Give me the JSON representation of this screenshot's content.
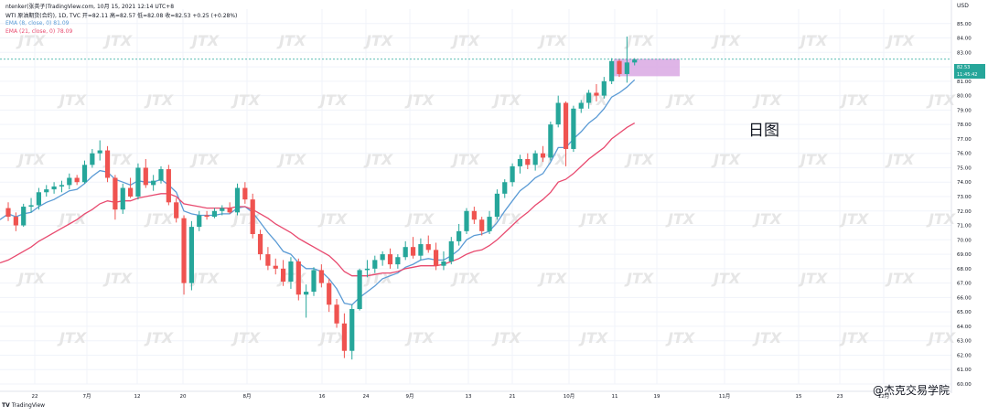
{
  "header": {
    "line1": "ntenker(张英子)TradingView.com, 10月 15, 2021 12:14 UTC+8",
    "symbol_line": "WTI 原油期货(合约), 1D, TVC  开=82.11  高=82.57  低=82.08  收=82.53  +0.25 (+0.28%)",
    "ema1": "EMA (8, close, 0)  81.09",
    "ema2": "EMA (21, close, 0)  78.09"
  },
  "price_axis": {
    "currency": "USD",
    "ticks": [
      "85.00",
      "84.00",
      "83.00",
      "82.00",
      "81.00",
      "80.00",
      "79.00",
      "78.00",
      "77.00",
      "76.00",
      "75.00",
      "74.00",
      "73.00",
      "72.00",
      "71.00",
      "70.00",
      "69.00",
      "68.00",
      "67.00",
      "66.00",
      "65.00",
      "64.00",
      "63.00",
      "62.00",
      "61.00",
      "60.00"
    ],
    "current_price": "82.53",
    "countdown": "11:45:42"
  },
  "time_axis": {
    "ticks": [
      "22",
      "7月",
      "12",
      "20",
      "8月",
      "16",
      "24",
      "9月",
      "13",
      "21",
      "10月",
      "11",
      "19",
      "11月",
      "15",
      "23",
      "12月"
    ]
  },
  "annotation": {
    "period_label": "日图"
  },
  "footer": {
    "logo": "TradingView",
    "watermark": "@杰克交易学院",
    "brand_watermark": "JTX"
  },
  "colors": {
    "up": "#26a69a",
    "down": "#ef5350",
    "ema_fast": "#5b9bd5",
    "ema_slow": "#e84a6f",
    "zone": "#d9a8e3"
  },
  "chart_data": {
    "type": "candlestick",
    "title": "WTI 原油期货(合约), 1D, TVC",
    "ylim": [
      60,
      86
    ],
    "ohlc": [
      [
        72.2,
        72.6,
        71.3,
        71.6
      ],
      [
        71.6,
        71.9,
        70.6,
        71.0
      ],
      [
        71.0,
        72.5,
        70.9,
        72.3
      ],
      [
        72.3,
        72.9,
        71.9,
        72.4
      ],
      [
        72.4,
        73.6,
        72.1,
        73.3
      ],
      [
        73.3,
        73.8,
        73.0,
        73.5
      ],
      [
        73.5,
        74.0,
        73.2,
        73.7
      ],
      [
        73.7,
        74.1,
        73.3,
        73.8
      ],
      [
        73.8,
        74.6,
        73.5,
        74.3
      ],
      [
        74.3,
        74.5,
        73.8,
        74.0
      ],
      [
        74.0,
        75.5,
        73.9,
        75.2
      ],
      [
        75.2,
        76.3,
        75.0,
        76.0
      ],
      [
        76.0,
        76.9,
        75.5,
        76.2
      ],
      [
        76.2,
        76.5,
        74.0,
        74.3
      ],
      [
        74.3,
        74.5,
        71.4,
        72.1
      ],
      [
        72.1,
        73.9,
        71.8,
        73.6
      ],
      [
        73.6,
        74.3,
        72.9,
        73.0
      ],
      [
        73.0,
        75.3,
        72.8,
        75.0
      ],
      [
        75.0,
        75.6,
        73.6,
        73.8
      ],
      [
        73.8,
        74.5,
        73.4,
        74.1
      ],
      [
        74.1,
        75.1,
        73.9,
        74.9
      ],
      [
        74.9,
        75.2,
        72.4,
        72.6
      ],
      [
        72.6,
        72.9,
        71.2,
        71.5
      ],
      [
        71.5,
        71.7,
        66.2,
        67.0
      ],
      [
        67.0,
        71.3,
        66.5,
        70.9
      ],
      [
        70.9,
        72.0,
        70.6,
        71.7
      ],
      [
        71.7,
        72.0,
        71.4,
        71.6
      ],
      [
        71.6,
        72.2,
        71.5,
        72.0
      ],
      [
        72.0,
        72.4,
        71.7,
        72.2
      ],
      [
        72.2,
        72.6,
        71.8,
        71.9
      ],
      [
        71.9,
        73.9,
        71.7,
        73.6
      ],
      [
        73.6,
        74.0,
        72.5,
        72.8
      ],
      [
        72.8,
        73.2,
        70.1,
        70.4
      ],
      [
        70.4,
        70.7,
        68.6,
        69.0
      ],
      [
        69.0,
        69.5,
        67.9,
        68.2
      ],
      [
        68.2,
        68.7,
        67.6,
        68.0
      ],
      [
        68.0,
        68.6,
        66.8,
        67.1
      ],
      [
        67.1,
        68.8,
        66.6,
        68.5
      ],
      [
        68.5,
        68.7,
        65.8,
        66.2
      ],
      [
        66.2,
        66.9,
        64.6,
        66.4
      ],
      [
        66.4,
        68.1,
        66.1,
        67.9
      ],
      [
        67.9,
        68.3,
        66.7,
        67.0
      ],
      [
        67.0,
        67.3,
        65.0,
        65.5
      ],
      [
        65.5,
        65.9,
        63.9,
        64.2
      ],
      [
        64.2,
        64.9,
        61.8,
        62.3
      ],
      [
        62.3,
        65.5,
        61.7,
        65.2
      ],
      [
        65.2,
        68.0,
        65.1,
        67.9
      ],
      [
        67.9,
        68.6,
        67.4,
        68.0
      ],
      [
        68.0,
        68.9,
        67.7,
        68.6
      ],
      [
        68.6,
        69.2,
        68.2,
        69.0
      ],
      [
        69.0,
        69.4,
        68.0,
        68.3
      ],
      [
        68.3,
        69.0,
        68.0,
        68.8
      ],
      [
        68.8,
        69.9,
        68.6,
        69.5
      ],
      [
        69.5,
        70.2,
        68.7,
        68.9
      ],
      [
        68.9,
        70.1,
        68.6,
        69.7
      ],
      [
        69.7,
        70.3,
        69.1,
        69.3
      ],
      [
        69.3,
        69.8,
        67.9,
        68.2
      ],
      [
        68.2,
        69.2,
        67.9,
        68.5
      ],
      [
        68.5,
        70.2,
        68.3,
        69.9
      ],
      [
        69.9,
        71.1,
        69.6,
        70.6
      ],
      [
        70.6,
        72.2,
        70.4,
        72.0
      ],
      [
        72.0,
        72.3,
        71.1,
        71.4
      ],
      [
        71.4,
        71.6,
        70.3,
        70.6
      ],
      [
        70.6,
        72.0,
        70.4,
        71.6
      ],
      [
        71.6,
        73.5,
        71.4,
        73.2
      ],
      [
        73.2,
        74.2,
        72.9,
        74.0
      ],
      [
        74.0,
        75.3,
        73.7,
        75.1
      ],
      [
        75.1,
        75.9,
        74.6,
        75.6
      ],
      [
        75.6,
        76.0,
        74.9,
        75.2
      ],
      [
        75.2,
        76.2,
        74.8,
        76.0
      ],
      [
        76.0,
        76.5,
        75.4,
        75.7
      ],
      [
        75.7,
        78.2,
        75.5,
        78.0
      ],
      [
        78.0,
        80.0,
        77.8,
        79.5
      ],
      [
        79.5,
        79.6,
        75.1,
        76.3
      ],
      [
        76.3,
        79.3,
        76.1,
        79.1
      ],
      [
        79.1,
        79.7,
        78.8,
        79.5
      ],
      [
        79.5,
        80.4,
        79.1,
        80.2
      ],
      [
        80.2,
        80.8,
        79.6,
        80.0
      ],
      [
        80.0,
        81.3,
        79.8,
        81.0
      ],
      [
        81.0,
        82.6,
        80.8,
        82.4
      ],
      [
        82.4,
        82.5,
        81.3,
        81.5
      ],
      [
        81.5,
        84.1,
        80.9,
        82.3
      ],
      [
        82.3,
        82.6,
        82.1,
        82.5
      ]
    ],
    "series": [
      {
        "name": "EMA (8, close, 0)",
        "values": [
          71.8,
          71.6,
          71.8,
          71.9,
          72.3,
          72.6,
          72.8,
          73.1,
          73.4,
          73.5,
          73.9,
          74.4,
          74.8,
          74.7,
          74.2,
          74.0,
          73.8,
          74.1,
          74.0,
          74.0,
          74.2,
          73.8,
          73.3,
          72.0,
          71.8,
          71.7,
          71.7,
          71.7,
          71.8,
          71.8,
          72.2,
          72.3,
          71.9,
          71.2,
          70.5,
          69.9,
          69.2,
          69.0,
          68.4,
          68.0,
          68.0,
          67.8,
          67.3,
          66.6,
          65.6,
          65.5,
          66.0,
          66.4,
          66.8,
          67.3,
          67.5,
          67.7,
          68.1,
          68.3,
          68.6,
          68.7,
          68.6,
          68.6,
          68.9,
          69.3,
          70.0,
          70.3,
          70.4,
          70.6,
          71.2,
          72.0,
          72.7,
          73.4,
          73.8,
          74.3,
          74.6,
          75.4,
          76.4,
          76.4,
          77.0,
          77.5,
          78.1,
          78.5,
          79.1,
          79.9,
          80.2,
          80.6,
          81.1
        ]
      },
      {
        "name": "EMA (21, close, 0)",
        "values": [
          68.6,
          68.9,
          69.2,
          69.5,
          69.9,
          70.2,
          70.5,
          70.8,
          71.1,
          71.4,
          71.8,
          72.1,
          72.5,
          72.7,
          72.6,
          72.7,
          72.7,
          72.9,
          73.0,
          73.1,
          73.2,
          73.2,
          73.0,
          72.5,
          72.4,
          72.3,
          72.2,
          72.2,
          72.2,
          72.2,
          72.3,
          72.3,
          72.1,
          71.8,
          71.5,
          71.1,
          70.8,
          70.5,
          70.1,
          69.8,
          69.5,
          69.2,
          68.9,
          68.4,
          67.8,
          67.5,
          67.5,
          67.5,
          67.6,
          67.7,
          67.7,
          67.8,
          68.0,
          68.1,
          68.2,
          68.2,
          68.2,
          68.3,
          68.5,
          68.7,
          69.0,
          69.2,
          69.3,
          69.6,
          70.0,
          70.5,
          71.0,
          71.5,
          71.9,
          72.4,
          72.8,
          73.3,
          74.0,
          74.2,
          74.6,
          75.1,
          75.6,
          76.0,
          76.4,
          77.0,
          77.4,
          77.8,
          78.1
        ]
      }
    ],
    "zone": {
      "from": 81.6,
      "to": 82.3
    },
    "last_price_line": 82.53,
    "grid": true
  }
}
